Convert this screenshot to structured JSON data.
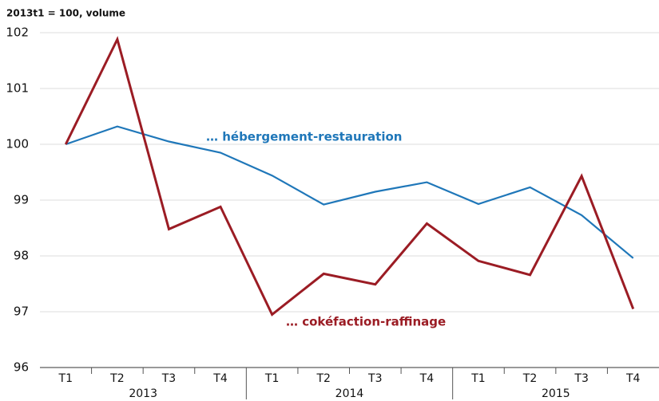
{
  "chart_data": {
    "type": "line",
    "subtitle": "2013t1 = 100, volume",
    "categories": [
      "T1",
      "T2",
      "T3",
      "T4",
      "T1",
      "T2",
      "T3",
      "T4",
      "T1",
      "T2",
      "T3",
      "T4"
    ],
    "years": [
      "2013",
      "2014",
      "2015"
    ],
    "series": [
      {
        "name": "… hébergement-restauration",
        "color": "#1f77b9",
        "values": [
          100,
          100.32,
          100.05,
          99.85,
          99.44,
          98.92,
          99.15,
          99.32,
          98.93,
          99.23,
          98.73,
          97.96
        ]
      },
      {
        "name": "… cokéfaction-raffinage",
        "color": "#9b1c24",
        "values": [
          100,
          101.88,
          98.48,
          98.88,
          96.95,
          97.68,
          97.49,
          98.58,
          97.91,
          97.66,
          99.43,
          97.05
        ]
      }
    ],
    "ylim": [
      96,
      102
    ],
    "yticks": [
      96,
      97,
      98,
      99,
      100,
      101,
      102
    ],
    "grid": true
  }
}
